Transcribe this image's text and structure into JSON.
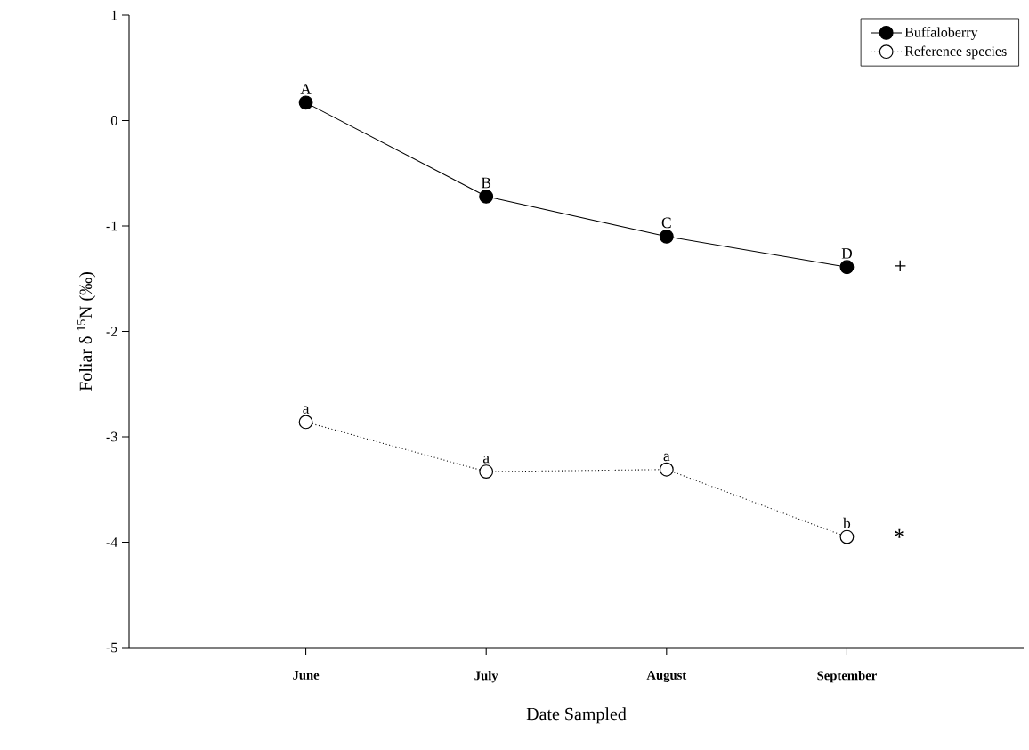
{
  "chart_data": {
    "type": "line",
    "xlabel": "Date Sampled",
    "ylabel": "Foliar δ $^{15}$N (‰)",
    "categories": [
      "June",
      "July",
      "August",
      "September"
    ],
    "series": [
      {
        "name": "Buffaloberry",
        "color": "#000000",
        "line_style": "solid",
        "values": [
          0.17,
          -0.72,
          -1.1,
          -1.39
        ]
      },
      {
        "name": "Reference species",
        "color": "#000000",
        "line_style": "dotted",
        "values": [
          -2.86,
          -3.33,
          -3.31,
          -3.95
        ]
      }
    ],
    "ylim": [
      -5,
      1
    ],
    "yticks": [
      -5,
      -4,
      -3,
      -2,
      -1,
      0,
      1
    ],
    "marker": "circle",
    "legend": "top right",
    "grid": false,
    "annotations": [
      {
        "text": "A",
        "x": "June",
        "y": 0.17
      },
      {
        "text": "B",
        "x": "July",
        "y": -0.72
      },
      {
        "text": "C",
        "x": "August",
        "y": -1.1
      },
      {
        "text": "D",
        "x": "September",
        "y": -1.39
      },
      {
        "text": "a",
        "x": "June",
        "y": -2.86
      },
      {
        "text": "a",
        "x": "July",
        "y": -3.33
      },
      {
        "text": "a",
        "x": "August",
        "y": -3.31
      },
      {
        "text": "b",
        "x": "September",
        "y": -3.95
      },
      {
        "text": "+",
        "x": "September",
        "y": -1.39
      },
      {
        "text": "*",
        "x": "September",
        "y": -3.95
      }
    ]
  }
}
